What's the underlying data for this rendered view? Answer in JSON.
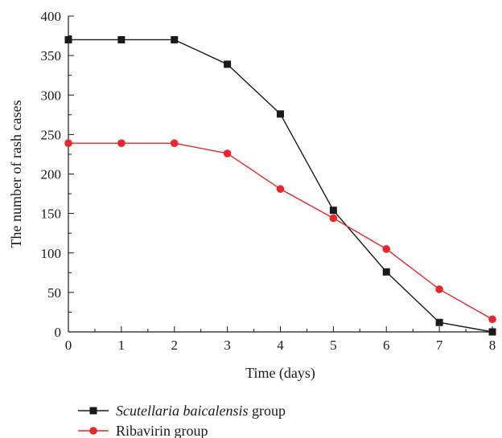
{
  "chart_data": {
    "type": "line",
    "xlabel": "Time (days)",
    "ylabel": "The number of rash cases",
    "x": [
      0,
      1,
      2,
      3,
      4,
      5,
      6,
      7,
      8
    ],
    "xlim": [
      0,
      8
    ],
    "ylim": [
      0,
      400
    ],
    "xticks": [
      "0",
      "1",
      "2",
      "3",
      "4",
      "5",
      "6",
      "7",
      "8"
    ],
    "yticks": [
      "0",
      "50",
      "100",
      "150",
      "200",
      "250",
      "300",
      "350",
      "400"
    ],
    "grid": false,
    "legend_position": "bottom-left",
    "series": [
      {
        "name_italic": "Scutellaria baicalensis",
        "name_suffix": " group",
        "marker": "square",
        "color": "#1a1a1a",
        "values": [
          370,
          370,
          370,
          339,
          276,
          154,
          76,
          12,
          0
        ]
      },
      {
        "name_italic": "",
        "name_suffix": "Ribavirin group",
        "marker": "circle",
        "color": "#e8262b",
        "values": [
          239,
          239,
          239,
          226,
          181,
          144,
          105,
          54,
          16
        ]
      }
    ]
  }
}
